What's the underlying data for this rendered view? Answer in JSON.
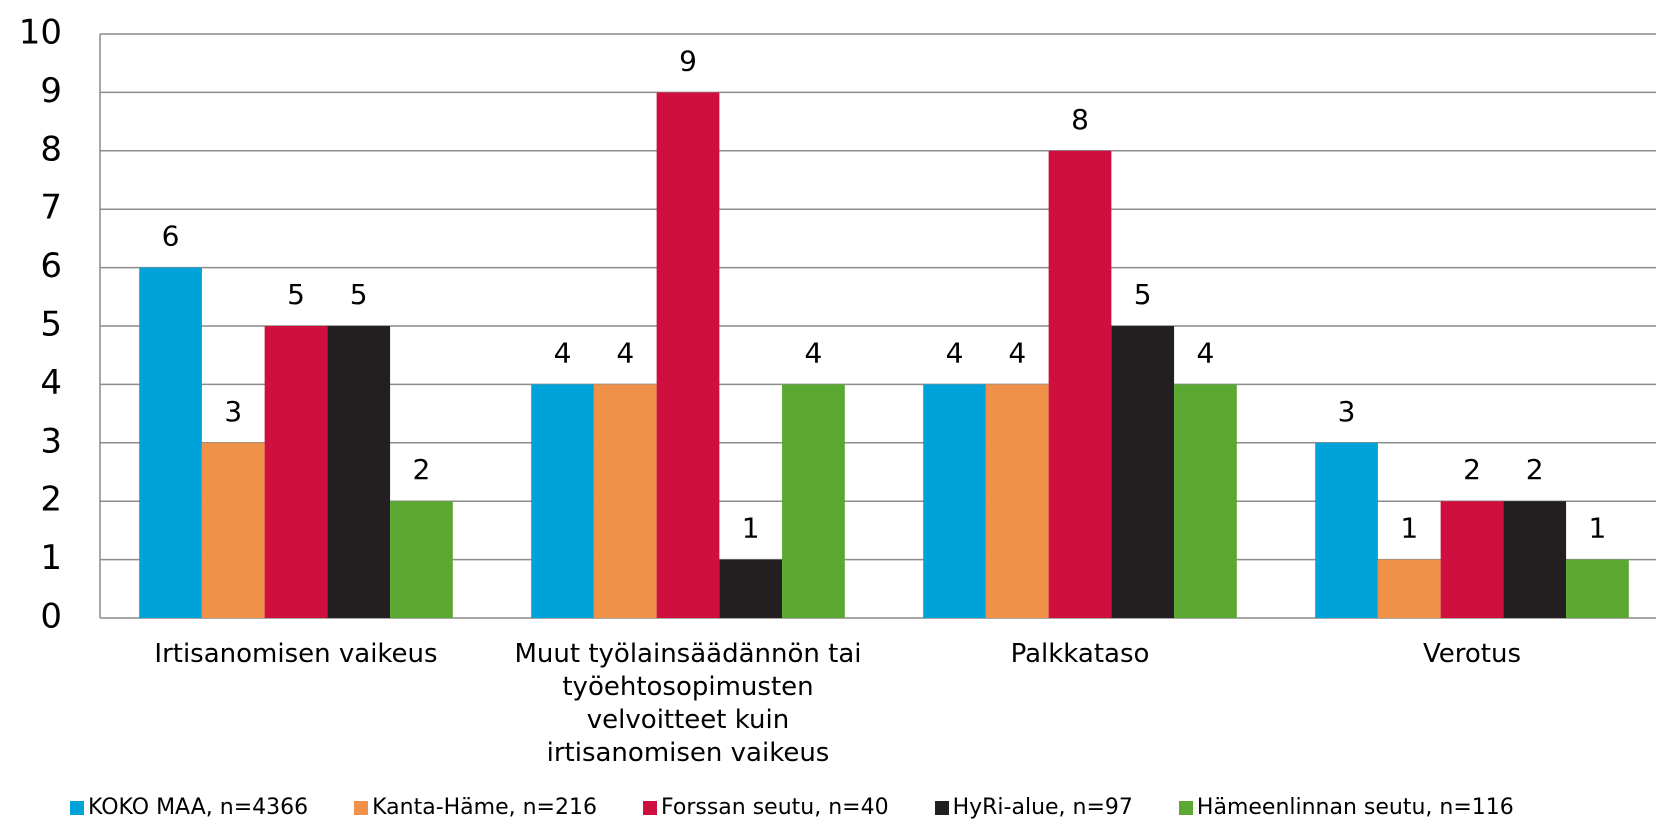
{
  "chart_data": {
    "type": "bar",
    "categories": [
      "Irtisanomisen vaikeus",
      "Muut työlainsäädännön tai työehtosopimusten velvoitteet kuin irtisanomisen vaikeus",
      "Palkkataso",
      "Verotus"
    ],
    "series": [
      {
        "name": "KOKO MAA, n=4366",
        "color": "#00a3d9",
        "values": [
          6,
          4,
          4,
          3
        ]
      },
      {
        "name": "Kanta-Häme, n=216",
        "color": "#f0914a",
        "values": [
          3,
          4,
          4,
          1
        ]
      },
      {
        "name": "Forssan seutu, n=40",
        "color": "#cf0f3e",
        "values": [
          5,
          9,
          8,
          2
        ]
      },
      {
        "name": "HyRi-alue, n=97",
        "color": "#231f20",
        "values": [
          5,
          1,
          5,
          2
        ]
      },
      {
        "name": "Hämeenlinnan seutu, n=116",
        "color": "#5aa831",
        "values": [
          2,
          4,
          4,
          1
        ]
      }
    ],
    "ylim": [
      0,
      10
    ],
    "yticks": [
      0,
      1,
      2,
      3,
      4,
      5,
      6,
      7,
      8,
      9,
      10
    ],
    "grid": true,
    "legend": "bottom"
  }
}
